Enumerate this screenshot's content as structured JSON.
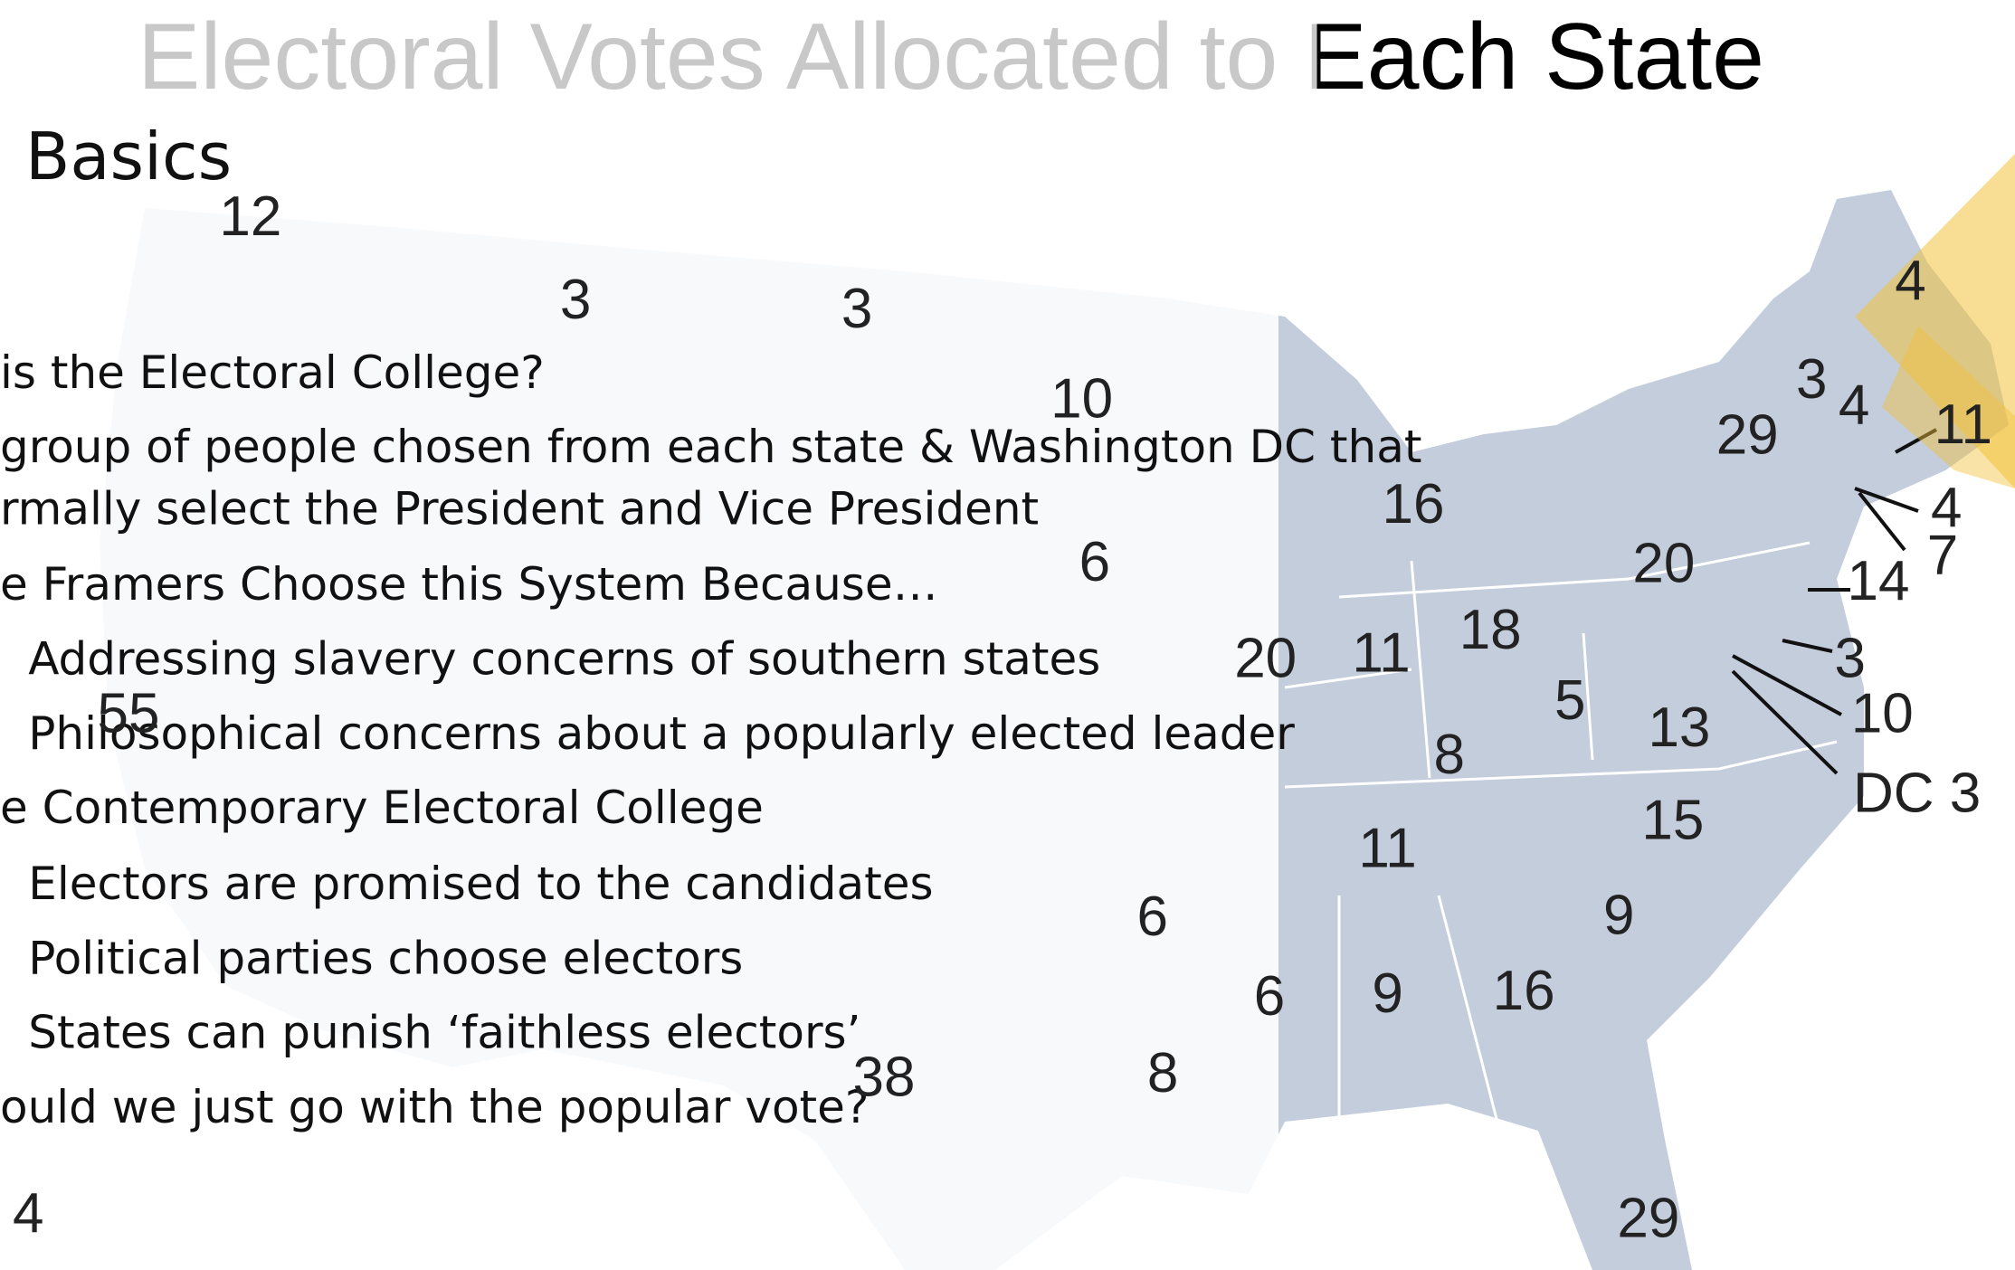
{
  "slide": {
    "title": "Electoral Votes Allocated to Each State",
    "heading": "Basics",
    "bullets": [
      "is the Electoral College?",
      "group of people chosen from each state & Washington DC that",
      "rmally select the President and Vice President",
      "e Framers Choose this System Because…",
      "Addressing slavery concerns of southern states",
      "Philosophical concerns about a popularly elected leader",
      "e Contemporary Electoral College",
      "Electors are promised to the candidates",
      "Political parties choose electors",
      "States can punish ‘faithless electors’",
      "ould we just go with the popular vote?"
    ],
    "map_labels": [
      "12",
      "3",
      "3",
      "10",
      "6",
      "6",
      "8",
      "4",
      "38",
      "55",
      "16",
      "20",
      "18",
      "11",
      "5",
      "13",
      "8",
      "15",
      "11",
      "9",
      "9",
      "16",
      "29",
      "29",
      "3",
      "4",
      "4",
      "11",
      "4",
      "7",
      "14",
      "3",
      "10",
      "DC 3",
      "20",
      "6"
    ]
  }
}
